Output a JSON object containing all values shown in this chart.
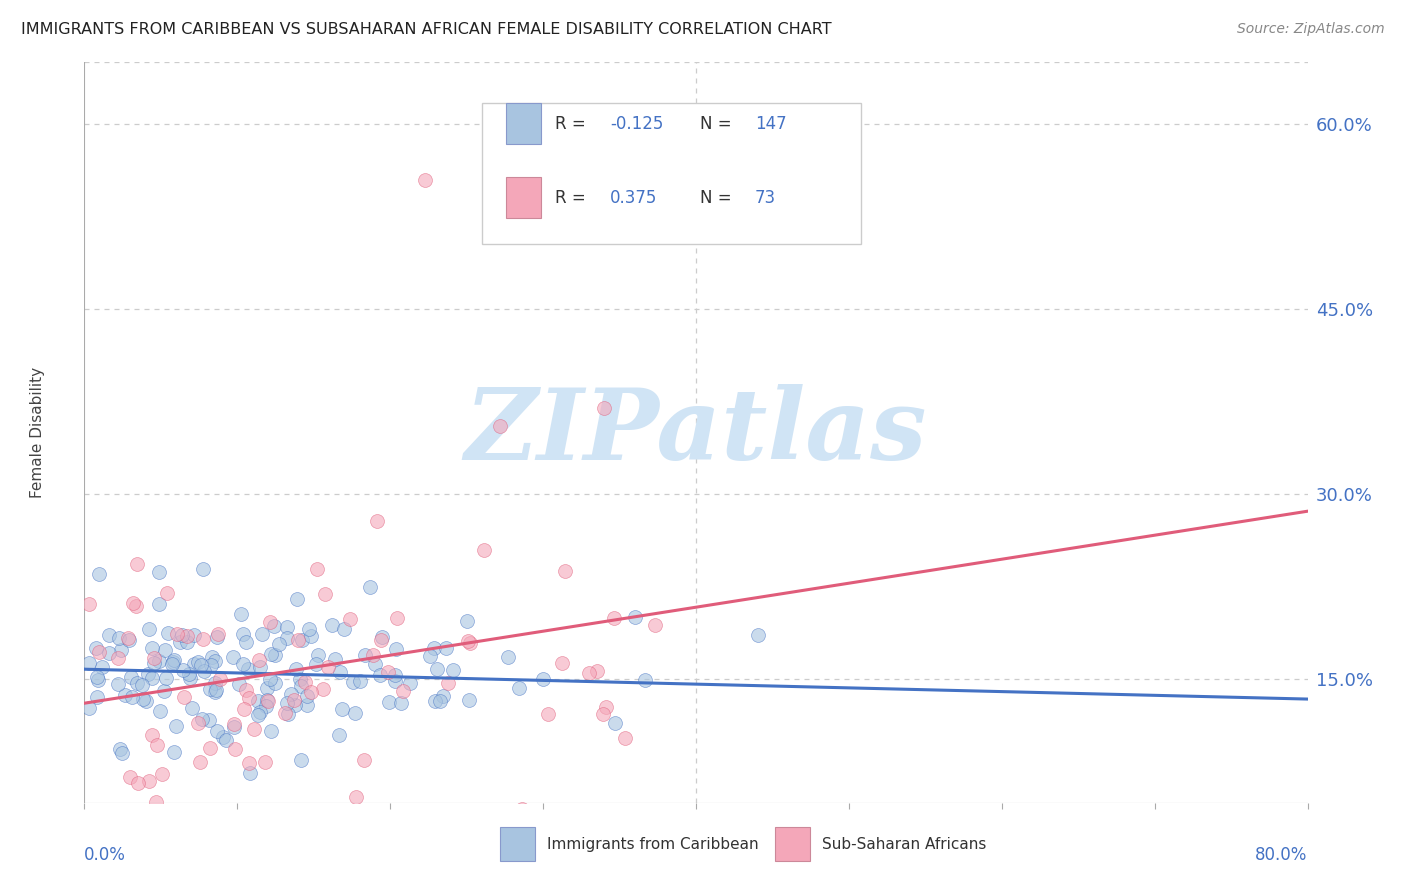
{
  "title": "IMMIGRANTS FROM CARIBBEAN VS SUBSAHARAN AFRICAN FEMALE DISABILITY CORRELATION CHART",
  "source": "Source: ZipAtlas.com",
  "ylabel": "Female Disability",
  "series1_label": "Immigrants from Caribbean",
  "series2_label": "Sub-Saharan Africans",
  "R1": -0.125,
  "N1": 147,
  "R2": 0.375,
  "N2": 73,
  "color1": "#a8c4e0",
  "color2": "#f4a7b9",
  "line_color1": "#4472c4",
  "line_color2": "#e05c7a",
  "title_color": "#222222",
  "axis_label_color": "#4472c4",
  "watermark_color": "#d0e4f5",
  "background_color": "#ffffff",
  "legend_R_color": "#4472c4",
  "xmin": 0.0,
  "xmax": 0.8,
  "ymin": 0.05,
  "ymax": 0.65,
  "ytick_vals": [
    0.15,
    0.3,
    0.45,
    0.6
  ],
  "ytick_labels": [
    "15.0%",
    "30.0%",
    "45.0%",
    "60.0%"
  ],
  "dot_size": 100,
  "dot_alpha": 0.6,
  "seed1": 42,
  "seed2": 123
}
